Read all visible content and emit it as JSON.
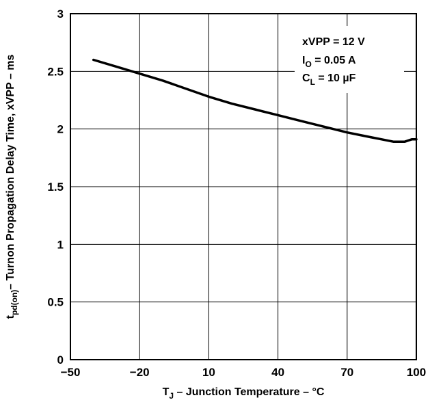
{
  "chart_data": {
    "type": "line",
    "title": "",
    "xlabel": {
      "main": "T",
      "sub": "J",
      "rest": " – Junction Temperature – °C"
    },
    "ylabel": {
      "main": "t",
      "sub": "pd(on)",
      "rest": "– Turnon Propagation Delay Time, xVPP – ms"
    },
    "xlim": [
      -50,
      100
    ],
    "ylim": [
      0,
      3
    ],
    "xticks": [
      -50,
      -20,
      10,
      40,
      70,
      100
    ],
    "xtick_labels": [
      "−50",
      "−20",
      "10",
      "40",
      "70",
      "100"
    ],
    "yticks": [
      0,
      0.5,
      1,
      1.5,
      2,
      2.5,
      3
    ],
    "ytick_labels": [
      "0",
      "0.5",
      "1",
      "1.5",
      "2",
      "2.5",
      "3"
    ],
    "grid": true,
    "series": [
      {
        "x": [
          -40,
          -30,
          -20,
          -10,
          0,
          10,
          20,
          30,
          40,
          50,
          60,
          70,
          80,
          85,
          90,
          95,
          98,
          100
        ],
        "values": [
          2.6,
          2.54,
          2.48,
          2.42,
          2.35,
          2.28,
          2.22,
          2.17,
          2.12,
          2.07,
          2.02,
          1.97,
          1.93,
          1.91,
          1.89,
          1.89,
          1.91,
          1.91
        ]
      }
    ],
    "annotations": [
      {
        "main": "xVPP = 12 V",
        "sub": "",
        "rest": ""
      },
      {
        "main": "I",
        "sub": "O",
        "rest": " = 0.05 A"
      },
      {
        "main": "C",
        "sub": "L",
        "rest": " = 10 µF"
      }
    ]
  }
}
